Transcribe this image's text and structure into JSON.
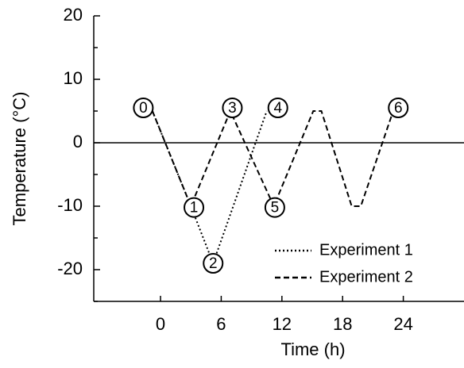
{
  "chart_data": {
    "type": "line",
    "xlabel": "Time (h)",
    "ylabel": "Temperature (°C)",
    "series": [
      {
        "name": "Experiment 1",
        "color": "#000000",
        "style": "dotted",
        "x": [
          -0.8,
          3.0,
          5.2,
          10.5
        ],
        "values": [
          5,
          -10,
          -19,
          5
        ]
      },
      {
        "name": "Experiment 2",
        "color": "#000000",
        "style": "dashed",
        "x": [
          -0.8,
          3.0,
          6.9,
          11.2,
          15.1,
          15.9,
          18.9,
          19.8,
          23.0
        ],
        "values": [
          5,
          -10,
          5,
          -10,
          5,
          5,
          -10,
          -10,
          5
        ]
      }
    ],
    "annotations": [
      {
        "text": "0",
        "x": -1.7,
        "y": 5.5
      },
      {
        "text": "1",
        "x": 3.3,
        "y": -10.2
      },
      {
        "text": "2",
        "x": 5.2,
        "y": -19
      },
      {
        "text": "3",
        "x": 7.1,
        "y": 5.5
      },
      {
        "text": "4",
        "x": 11.6,
        "y": 5.5
      },
      {
        "text": "5",
        "x": 11.3,
        "y": -10.2
      },
      {
        "text": "6",
        "x": 23.5,
        "y": 5.5
      }
    ],
    "hline": 0,
    "xlim": [
      -6.6,
      30
    ],
    "xticks": [
      0,
      6,
      12,
      18,
      24
    ],
    "ylim": [
      -25,
      20
    ],
    "yticks": [
      -20,
      -10,
      0,
      10,
      20
    ],
    "y_minor_ticks": [
      -25,
      -15,
      -5,
      5,
      15
    ],
    "legend": "lower right",
    "grid": false
  }
}
